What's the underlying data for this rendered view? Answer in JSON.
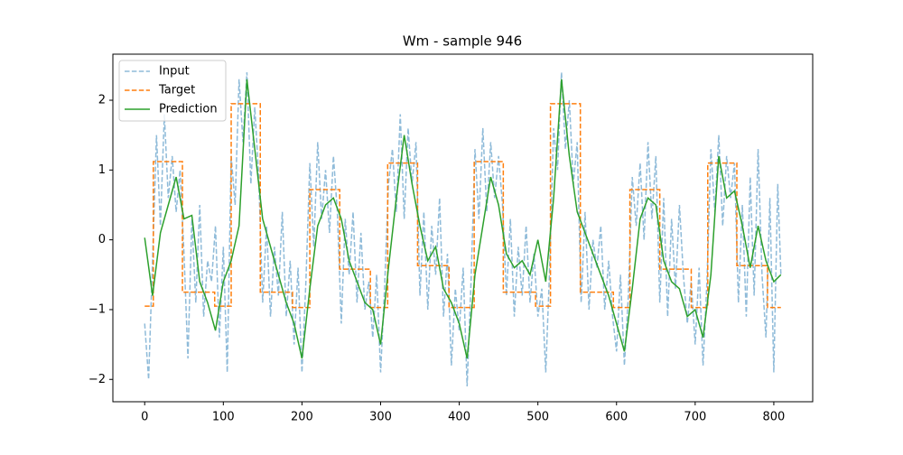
{
  "chart_data": {
    "type": "line",
    "title": "Wm - sample 946",
    "xlim": [
      -40.45,
      849.45
    ],
    "xticks": [
      0,
      100,
      200,
      300,
      400,
      500,
      600,
      700,
      800
    ],
    "ylim": [
      -2.32,
      2.66
    ],
    "yticks": [
      {
        "value": -2,
        "label": "−2"
      },
      {
        "value": -1,
        "label": "−1"
      },
      0,
      1,
      2
    ],
    "legend": "upper left",
    "series": [
      {
        "name": "Input",
        "color": "#1f77b4",
        "linestyle": "dashed",
        "alpha": 0.5,
        "x": [
          0,
          5,
          10,
          15,
          20,
          25,
          30,
          35,
          40,
          45,
          50,
          55,
          60,
          65,
          70,
          75,
          80,
          85,
          90,
          95,
          100,
          105,
          110,
          115,
          120,
          125,
          130,
          135,
          140,
          145,
          150,
          155,
          160,
          165,
          170,
          175,
          180,
          185,
          190,
          195,
          200,
          205,
          210,
          215,
          220,
          225,
          230,
          235,
          240,
          245,
          250,
          255,
          260,
          265,
          270,
          275,
          280,
          285,
          290,
          295,
          300,
          305,
          310,
          315,
          320,
          325,
          330,
          335,
          340,
          345,
          350,
          355,
          360,
          365,
          370,
          375,
          380,
          385,
          390,
          395,
          400,
          405,
          410,
          415,
          420,
          425,
          430,
          435,
          440,
          445,
          450,
          455,
          460,
          465,
          470,
          475,
          480,
          485,
          490,
          495,
          500,
          505,
          510,
          515,
          520,
          525,
          530,
          535,
          540,
          545,
          550,
          555,
          560,
          565,
          570,
          575,
          580,
          585,
          590,
          595,
          600,
          605,
          610,
          615,
          620,
          625,
          630,
          635,
          640,
          645,
          650,
          655,
          660,
          665,
          670,
          675,
          680,
          685,
          690,
          695,
          700,
          705,
          710,
          715,
          720,
          725,
          730,
          735,
          740,
          745,
          750,
          755,
          760,
          765,
          770,
          775,
          780,
          785,
          790,
          795,
          800,
          805,
          809
        ],
        "values": [
          -1.2,
          -2.0,
          -0.3,
          1.5,
          0.2,
          1.8,
          0.6,
          1.2,
          0.4,
          1.0,
          -0.2,
          -1.7,
          0.3,
          -0.9,
          0.5,
          -1.1,
          -0.3,
          -0.6,
          0.2,
          -1.4,
          -0.1,
          -1.9,
          1.2,
          0.5,
          2.3,
          1.4,
          2.4,
          0.8,
          1.9,
          0.9,
          -0.9,
          0.2,
          -1.1,
          -0.1,
          -0.8,
          0.4,
          -1.1,
          -0.3,
          -1.5,
          -0.4,
          -1.9,
          -0.6,
          1.1,
          -0.1,
          1.4,
          0.3,
          1.0,
          0.1,
          1.2,
          0.4,
          -1.2,
          0.3,
          -0.5,
          0.4,
          -0.9,
          0.1,
          -1.0,
          -0.6,
          -1.4,
          -0.5,
          -1.9,
          -0.7,
          0.8,
          1.3,
          0.4,
          1.8,
          0.3,
          1.6,
          0.8,
          1.4,
          -0.8,
          0.4,
          -1.0,
          0.2,
          -0.5,
          0.6,
          -1.1,
          -0.2,
          -1.8,
          -0.7,
          -1.3,
          -0.4,
          -2.1,
          -0.6,
          1.3,
          0.3,
          1.6,
          0.4,
          1.4,
          0.6,
          1.2,
          0.5,
          -0.8,
          0.3,
          -1.1,
          -0.1,
          -0.8,
          0.2,
          -0.9,
          -0.2,
          -1.1,
          -0.7,
          -1.9,
          -0.4,
          1.6,
          1.0,
          2.4,
          1.3,
          2.0,
          0.8,
          1.4,
          -0.9,
          0.4,
          -1.0,
          0.0,
          -0.4,
          0.2,
          -1.0,
          -0.3,
          -1.1,
          -1.6,
          -0.5,
          -1.8,
          -0.8,
          0.9,
          0.2,
          1.1,
          0.0,
          1.4,
          0.3,
          1.2,
          -0.9,
          0.6,
          -1.1,
          0.3,
          -0.7,
          0.5,
          -0.5,
          -1.2,
          -0.6,
          -1.5,
          -0.4,
          -1.8,
          -0.6,
          1.3,
          0.4,
          1.5,
          0.2,
          1.2,
          0.6,
          1.1,
          -0.9,
          0.5,
          -1.1,
          0.9,
          -0.8,
          1.3,
          -0.5,
          -1.4,
          0.6,
          -1.9,
          0.8,
          -0.5
        ]
      },
      {
        "name": "Target",
        "color": "#ff7f0e",
        "linestyle": "dashed",
        "alpha": 1,
        "x": [
          0,
          11,
          11,
          48,
          48,
          89,
          89,
          110,
          110,
          147,
          147,
          188,
          188,
          210,
          210,
          248,
          248,
          287,
          287,
          309,
          309,
          347,
          347,
          387,
          387,
          419,
          419,
          456,
          456,
          497,
          497,
          516,
          516,
          554,
          554,
          596,
          596,
          617,
          617,
          655,
          655,
          695,
          695,
          716,
          716,
          753,
          753,
          792,
          792,
          809
        ],
        "values": [
          -0.95,
          -0.95,
          1.12,
          1.12,
          -0.75,
          -0.75,
          -0.95,
          -0.95,
          1.95,
          1.95,
          -0.75,
          -0.75,
          -0.97,
          -0.97,
          0.72,
          0.72,
          -0.42,
          -0.42,
          -0.97,
          -0.97,
          1.1,
          1.1,
          -0.37,
          -0.37,
          -0.97,
          -0.97,
          1.12,
          1.12,
          -0.75,
          -0.75,
          -0.95,
          -0.95,
          1.95,
          1.95,
          -0.75,
          -0.75,
          -0.97,
          -0.97,
          0.72,
          0.72,
          -0.42,
          -0.42,
          -0.97,
          -0.97,
          1.1,
          1.1,
          -0.37,
          -0.37,
          -0.97,
          -0.97
        ]
      },
      {
        "name": "Prediction",
        "color": "#2ca02c",
        "linestyle": "solid",
        "alpha": 1,
        "x": [
          0,
          10,
          20,
          30,
          40,
          50,
          60,
          70,
          80,
          90,
          100,
          110,
          120,
          130,
          140,
          150,
          160,
          170,
          180,
          190,
          200,
          210,
          220,
          230,
          240,
          250,
          260,
          270,
          280,
          290,
          300,
          310,
          320,
          330,
          340,
          350,
          360,
          370,
          380,
          390,
          400,
          410,
          420,
          430,
          440,
          450,
          460,
          470,
          480,
          490,
          500,
          510,
          520,
          530,
          540,
          550,
          560,
          570,
          580,
          590,
          600,
          610,
          620,
          630,
          640,
          650,
          660,
          670,
          680,
          690,
          700,
          710,
          720,
          730,
          740,
          750,
          760,
          770,
          780,
          790,
          800,
          809
        ],
        "values": [
          0.03,
          -0.8,
          0.1,
          0.5,
          0.9,
          0.3,
          0.35,
          -0.6,
          -0.9,
          -1.3,
          -0.6,
          -0.3,
          0.2,
          2.3,
          1.3,
          0.3,
          -0.1,
          -0.5,
          -0.9,
          -1.2,
          -1.7,
          -0.7,
          0.2,
          0.5,
          0.6,
          0.3,
          -0.3,
          -0.6,
          -0.9,
          -1.0,
          -1.5,
          -0.4,
          0.6,
          1.5,
          0.8,
          0.2,
          -0.3,
          -0.1,
          -0.7,
          -0.9,
          -1.2,
          -1.7,
          -0.5,
          0.2,
          0.9,
          0.5,
          -0.2,
          -0.4,
          -0.3,
          -0.5,
          0.0,
          -0.6,
          0.6,
          2.3,
          1.2,
          0.4,
          0.1,
          -0.2,
          -0.5,
          -0.8,
          -1.2,
          -1.6,
          -0.7,
          0.3,
          0.6,
          0.5,
          -0.3,
          -0.6,
          -0.7,
          -1.1,
          -1.0,
          -1.4,
          -0.5,
          1.2,
          0.6,
          0.7,
          0.2,
          -0.4,
          0.2,
          -0.3,
          -0.6,
          -0.5
        ]
      }
    ]
  }
}
